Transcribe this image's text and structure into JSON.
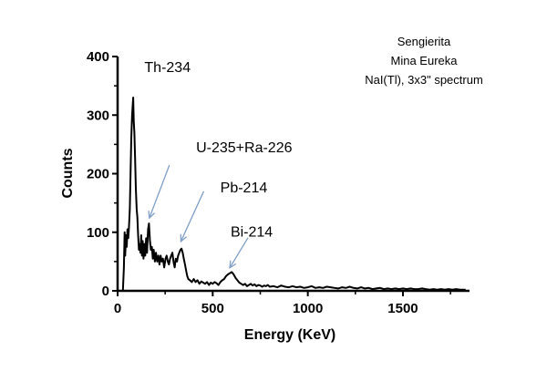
{
  "chart_data": {
    "type": "line",
    "title": "",
    "xlabel": "Energy (KeV)",
    "ylabel": "Counts",
    "xlim": [
      0,
      1850
    ],
    "ylim": [
      0,
      400
    ],
    "xticks": [
      0,
      500,
      1000,
      1500
    ],
    "yticks": [
      0,
      100,
      200,
      300,
      400
    ],
    "grid": false,
    "notes": [
      "Sengierita",
      "Mina Eureka",
      "NaI(Tl), 3x3\" spectrum"
    ],
    "annotations": [
      {
        "label": "Th-234",
        "x": 93,
        "y": 330
      },
      {
        "label": "U-235+Ra-226",
        "x": 186,
        "y": 115
      },
      {
        "label": "Pb-214",
        "x": 352,
        "y": 75
      },
      {
        "label": "Bi-214",
        "x": 609,
        "y": 30
      }
    ],
    "series": [
      {
        "values": [
          [
            20,
            0
          ],
          [
            28,
            0
          ],
          [
            33,
            40
          ],
          [
            37,
            100
          ],
          [
            40,
            60
          ],
          [
            44,
            95
          ],
          [
            48,
            75
          ],
          [
            52,
            105
          ],
          [
            56,
            90
          ],
          [
            60,
            110
          ],
          [
            64,
            140
          ],
          [
            68,
            200
          ],
          [
            72,
            260
          ],
          [
            76,
            300
          ],
          [
            79,
            315
          ],
          [
            82,
            330
          ],
          [
            85,
            290
          ],
          [
            88,
            270
          ],
          [
            92,
            225
          ],
          [
            96,
            175
          ],
          [
            100,
            140
          ],
          [
            104,
            125
          ],
          [
            108,
            95
          ],
          [
            112,
            70
          ],
          [
            116,
            80
          ],
          [
            120,
            65
          ],
          [
            124,
            95
          ],
          [
            128,
            60
          ],
          [
            132,
            85
          ],
          [
            136,
            55
          ],
          [
            140,
            80
          ],
          [
            145,
            60
          ],
          [
            150,
            90
          ],
          [
            155,
            65
          ],
          [
            160,
            105
          ],
          [
            165,
            115
          ],
          [
            170,
            85
          ],
          [
            175,
            70
          ],
          [
            180,
            75
          ],
          [
            185,
            55
          ],
          [
            190,
            70
          ],
          [
            196,
            50
          ],
          [
            202,
            65
          ],
          [
            208,
            50
          ],
          [
            214,
            60
          ],
          [
            220,
            45
          ],
          [
            226,
            60
          ],
          [
            232,
            50
          ],
          [
            238,
            55
          ],
          [
            245,
            40
          ],
          [
            252,
            55
          ],
          [
            258,
            60
          ],
          [
            264,
            50
          ],
          [
            270,
            45
          ],
          [
            276,
            55
          ],
          [
            282,
            60
          ],
          [
            288,
            65
          ],
          [
            294,
            50
          ],
          [
            300,
            40
          ],
          [
            306,
            55
          ],
          [
            312,
            50
          ],
          [
            318,
            60
          ],
          [
            324,
            65
          ],
          [
            330,
            70
          ],
          [
            336,
            72
          ],
          [
            342,
            65
          ],
          [
            348,
            55
          ],
          [
            354,
            45
          ],
          [
            360,
            35
          ],
          [
            366,
            25
          ],
          [
            372,
            20
          ],
          [
            380,
            18
          ],
          [
            390,
            15
          ],
          [
            400,
            20
          ],
          [
            410,
            15
          ],
          [
            420,
            18
          ],
          [
            430,
            12
          ],
          [
            440,
            16
          ],
          [
            450,
            14
          ],
          [
            460,
            12
          ],
          [
            470,
            15
          ],
          [
            480,
            10
          ],
          [
            490,
            14
          ],
          [
            500,
            12
          ],
          [
            510,
            15
          ],
          [
            520,
            13
          ],
          [
            530,
            10
          ],
          [
            540,
            15
          ],
          [
            550,
            18
          ],
          [
            560,
            20
          ],
          [
            570,
            25
          ],
          [
            580,
            28
          ],
          [
            590,
            30
          ],
          [
            600,
            32
          ],
          [
            610,
            28
          ],
          [
            620,
            22
          ],
          [
            630,
            18
          ],
          [
            640,
            14
          ],
          [
            650,
            12
          ],
          [
            660,
            10
          ],
          [
            670,
            12
          ],
          [
            680,
            8
          ],
          [
            690,
            10
          ],
          [
            700,
            12
          ],
          [
            710,
            9
          ],
          [
            720,
            11
          ],
          [
            730,
            8
          ],
          [
            740,
            10
          ],
          [
            750,
            9
          ],
          [
            760,
            7
          ],
          [
            770,
            9
          ],
          [
            780,
            8
          ],
          [
            790,
            10
          ],
          [
            800,
            7
          ],
          [
            820,
            8
          ],
          [
            840,
            6
          ],
          [
            860,
            9
          ],
          [
            880,
            7
          ],
          [
            900,
            6
          ],
          [
            920,
            8
          ],
          [
            940,
            6
          ],
          [
            960,
            7
          ],
          [
            980,
            5
          ],
          [
            1000,
            6
          ],
          [
            1020,
            8
          ],
          [
            1040,
            5
          ],
          [
            1060,
            6
          ],
          [
            1080,
            5
          ],
          [
            1100,
            7
          ],
          [
            1120,
            6
          ],
          [
            1140,
            5
          ],
          [
            1160,
            4
          ],
          [
            1180,
            6
          ],
          [
            1200,
            5
          ],
          [
            1220,
            7
          ],
          [
            1240,
            5
          ],
          [
            1260,
            4
          ],
          [
            1280,
            6
          ],
          [
            1300,
            4
          ],
          [
            1320,
            5
          ],
          [
            1340,
            3
          ],
          [
            1360,
            4
          ],
          [
            1380,
            5
          ],
          [
            1400,
            3
          ],
          [
            1420,
            4
          ],
          [
            1440,
            3
          ],
          [
            1460,
            4
          ],
          [
            1480,
            3
          ],
          [
            1500,
            4
          ],
          [
            1520,
            3
          ],
          [
            1540,
            4
          ],
          [
            1560,
            3
          ],
          [
            1580,
            3
          ],
          [
            1600,
            4
          ],
          [
            1620,
            3
          ],
          [
            1640,
            2
          ],
          [
            1660,
            3
          ],
          [
            1680,
            2
          ],
          [
            1700,
            3
          ],
          [
            1720,
            2
          ],
          [
            1740,
            3
          ],
          [
            1760,
            2
          ],
          [
            1780,
            3
          ],
          [
            1800,
            2
          ],
          [
            1830,
            2
          ]
        ]
      }
    ]
  }
}
